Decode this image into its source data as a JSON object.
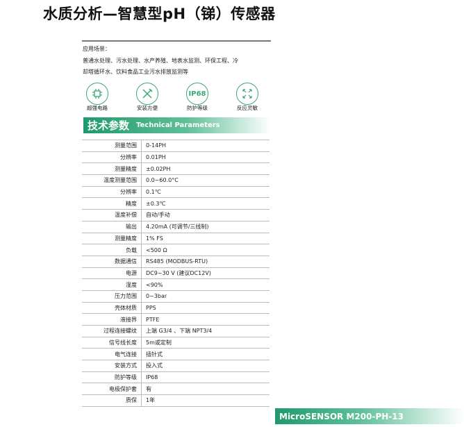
{
  "title": "水质分析—智慧型pH（锑）传感器",
  "application": {
    "label": "应用场景：",
    "line1": "普通水处理、污水处理、水产养殖、地表水监测、环保工程、冷",
    "line2": "却塔循环水、饮料食品工业污水排放监测等"
  },
  "features": [
    {
      "icon": "chip-icon",
      "label": "超强电路"
    },
    {
      "icon": "tools-icon",
      "label": "安装方便"
    },
    {
      "icon": "ip68-icon",
      "label": "防护等级",
      "icon_text": "IP68"
    },
    {
      "icon": "expand-arrows-icon",
      "label": "反应灵敏"
    }
  ],
  "section": {
    "title_zh": "技术参数",
    "title_en": "Technical Parameters"
  },
  "params": [
    {
      "k": "测量范围",
      "v": "0-14PH"
    },
    {
      "k": "分辨率",
      "v": "0.01PH"
    },
    {
      "k": "测量精度",
      "v": "±0.02PH"
    },
    {
      "k": "温度测量范围",
      "v": "0.0~60.0°C"
    },
    {
      "k": "分辨率",
      "v": "0.1℃"
    },
    {
      "k": "精度",
      "v": "±0.3℃"
    },
    {
      "k": "温度补偿",
      "v": "自动/手动"
    },
    {
      "k": "输出",
      "v": "4.20mA (可调节/三线制)"
    },
    {
      "k": "测量精度",
      "v": "1% FS"
    },
    {
      "k": "负载",
      "v": "<500 Ω"
    },
    {
      "k": "数据通信",
      "v": "RS485 (MODBUS-RTU)"
    },
    {
      "k": "电源",
      "v": "DC9~30 V (建议DC12V)"
    },
    {
      "k": "湿度",
      "v": "<90%"
    },
    {
      "k": "压力范围",
      "v": "0~3bar"
    },
    {
      "k": "壳体材质",
      "v": "PPS"
    },
    {
      "k": "液接界",
      "v": "PTFE"
    },
    {
      "k": "过程连接螺纹",
      "v": "上端 G3/4 、下端 NPT3/4"
    },
    {
      "k": "信号线长度",
      "v": "5m或定制"
    },
    {
      "k": "电气连接",
      "v": "插针式"
    },
    {
      "k": "安装方式",
      "v": "投入式"
    },
    {
      "k": "防护等级",
      "v": "IP68"
    },
    {
      "k": "电极保护套",
      "v": "有"
    },
    {
      "k": "质保",
      "v": "1年"
    }
  ],
  "footer": "MicroSENSOR M200-PH-13",
  "colors": {
    "accent": "#1f9a6c"
  }
}
